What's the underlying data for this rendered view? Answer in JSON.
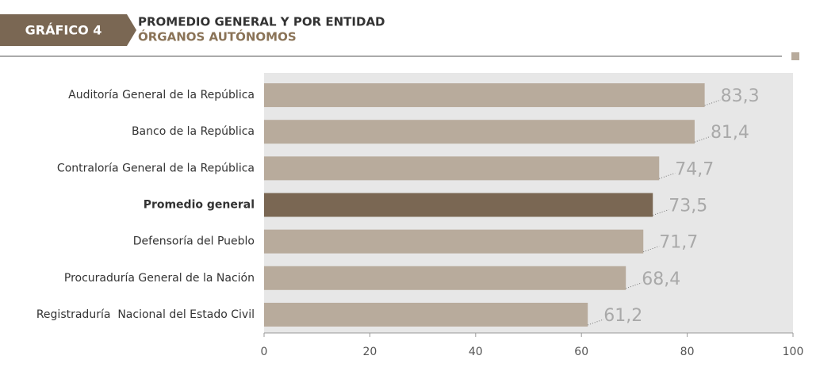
{
  "chart_data": {
    "type": "bar",
    "orientation": "horizontal",
    "badge": "GRÁFICO 4",
    "title": "PROMEDIO GENERAL Y POR ENTIDAD",
    "subtitle": "ÓRGANOS AUTÓNOMOS",
    "categories": [
      "Auditoría General de la República",
      "Banco de la República",
      "Contraloría General de la República",
      "Promedio general",
      "Defensoría del Pueblo",
      "Procuraduría General de la Nación",
      "Registraduría  Nacional del Estado Civil"
    ],
    "values": [
      83.3,
      81.4,
      74.7,
      73.5,
      71.7,
      68.4,
      61.2
    ],
    "value_labels": [
      "83,3",
      "81,4",
      "74,7",
      "73,5",
      "71,7",
      "68,4",
      "61,2"
    ],
    "color": "#b8ab9c",
    "highlight": {
      "index": 3,
      "color": "#7a6753"
    },
    "xlim": [
      0,
      100
    ],
    "xticks": [
      0,
      20,
      40,
      60,
      80,
      100
    ]
  }
}
